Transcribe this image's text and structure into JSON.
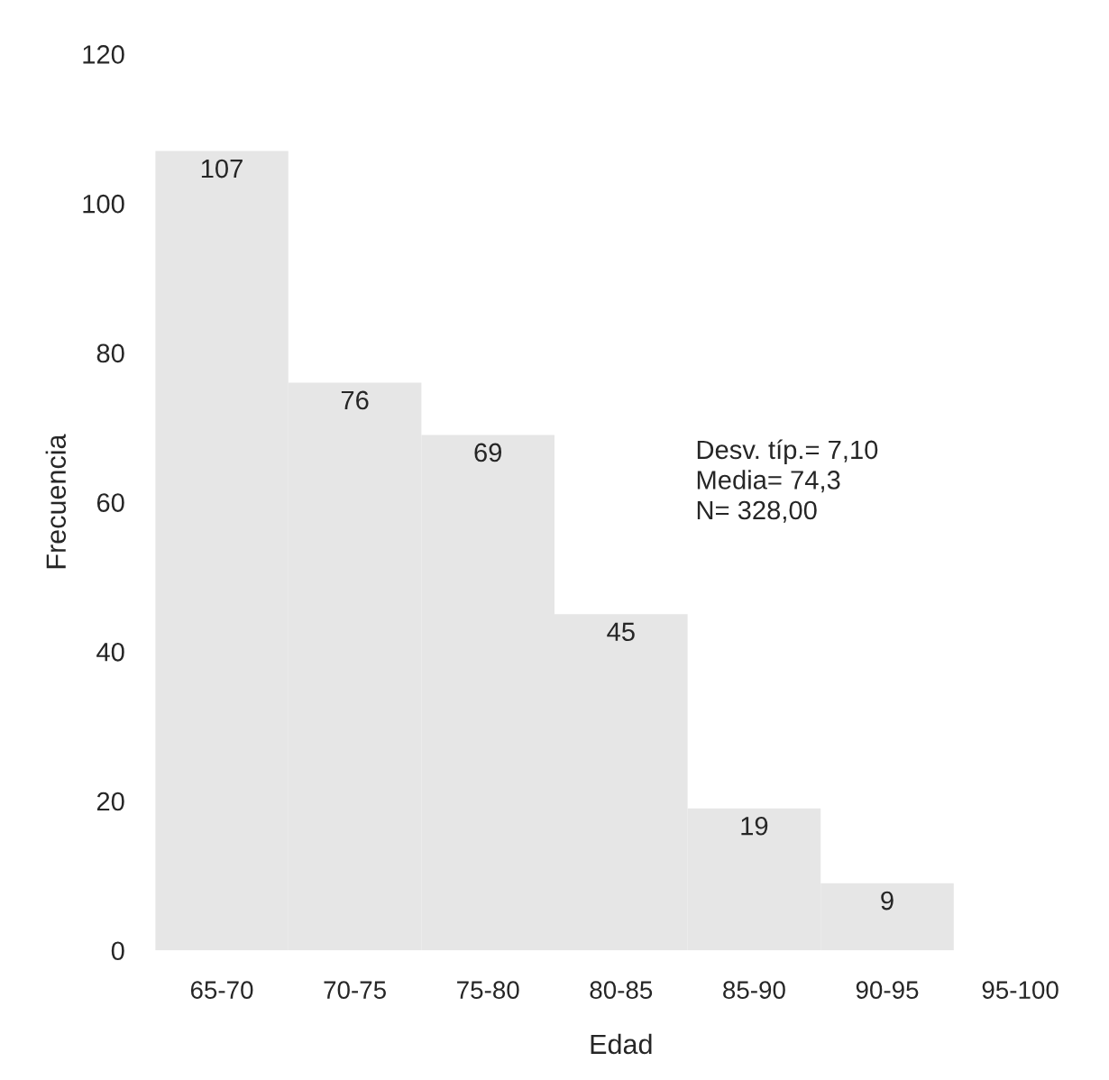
{
  "chart_data": {
    "type": "bar",
    "xlabel": "Edad",
    "ylabel": "Frecuencia",
    "categories": [
      "65-70",
      "70-75",
      "75-80",
      "80-85",
      "85-90",
      "90-95",
      "95-100"
    ],
    "values": [
      107,
      76,
      69,
      45,
      19,
      9,
      null
    ],
    "color": "#e6e6e6",
    "data_labels": true,
    "ylim": [
      0,
      120
    ],
    "yticks": [
      0,
      20,
      40,
      60,
      80,
      100,
      120
    ],
    "grid": false,
    "annotations": [
      "Desv. típ.= 7,10\nMedia= 74,3\nN= 328,00"
    ]
  }
}
